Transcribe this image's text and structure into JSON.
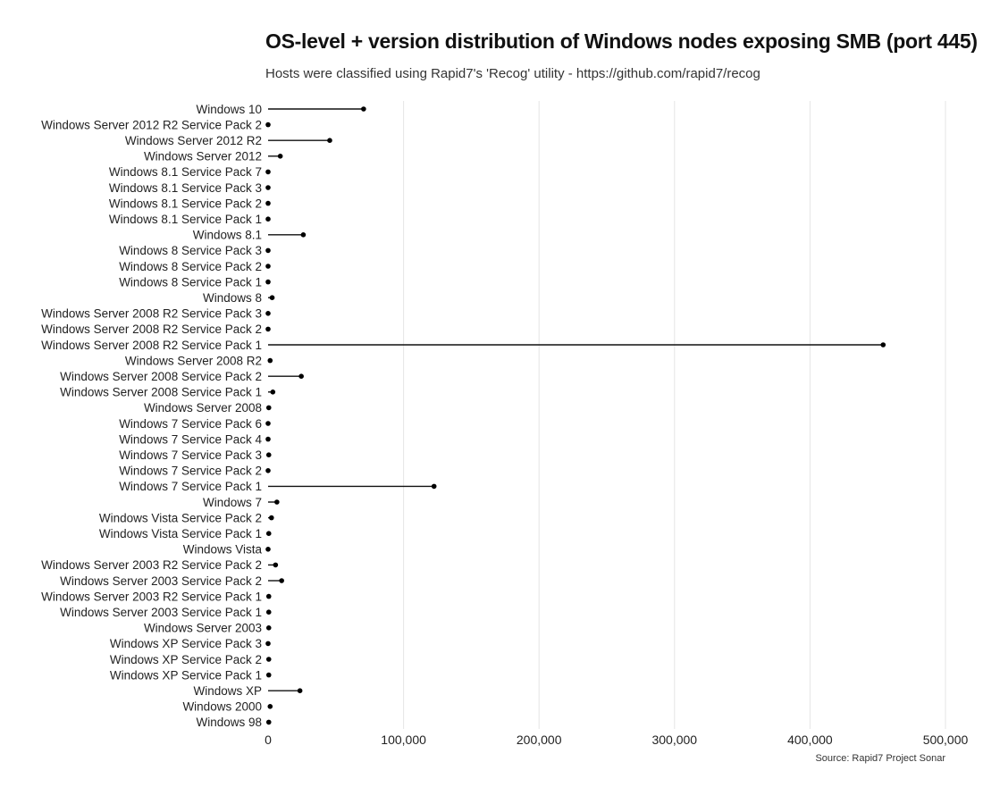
{
  "chart_data": {
    "type": "lollipop",
    "orientation": "horizontal",
    "title": "OS-level + version distribution of Windows nodes exposing SMB (port 445)",
    "subtitle": "Hosts were classified using Rapid7's 'Recog' utility - https://github.com/rapid7/recog",
    "caption": "Source: Rapid7 Project Sonar",
    "xlabel": "",
    "ylabel": "",
    "xlim": [
      0,
      500000
    ],
    "x_ticks": [
      0,
      100000,
      200000,
      300000,
      400000,
      500000
    ],
    "x_tick_labels": [
      "0",
      "100,000",
      "200,000",
      "300,000",
      "400,000",
      "500,000"
    ],
    "grid": "vertical",
    "categories": [
      "Windows 10",
      "Windows Server 2012 R2 Service Pack 2",
      "Windows Server 2012 R2",
      "Windows Server 2012",
      "Windows 8.1 Service Pack 7",
      "Windows 8.1 Service Pack 3",
      "Windows 8.1 Service Pack 2",
      "Windows 8.1 Service Pack 1",
      "Windows 8.1",
      "Windows 8 Service Pack 3",
      "Windows 8 Service Pack 2",
      "Windows 8 Service Pack 1",
      "Windows 8",
      "Windows Server 2008 R2 Service Pack 3",
      "Windows Server 2008 R2 Service Pack 2",
      "Windows Server 2008 R2 Service Pack 1",
      "Windows Server 2008 R2",
      "Windows Server 2008 Service Pack 2",
      "Windows Server 2008 Service Pack 1",
      "Windows Server 2008",
      "Windows 7 Service Pack 6",
      "Windows 7 Service Pack 4",
      "Windows 7 Service Pack 3",
      "Windows 7 Service Pack 2",
      "Windows 7 Service Pack 1",
      "Windows 7",
      "Windows Vista Service Pack 2",
      "Windows Vista Service Pack 1",
      "Windows Vista",
      "Windows Server 2003 R2 Service Pack 2",
      "Windows Server 2003 Service Pack 2",
      "Windows Server 2003 R2 Service Pack 1",
      "Windows Server 2003 Service Pack 1",
      "Windows Server 2003",
      "Windows XP Service Pack 3",
      "Windows XP Service Pack 2",
      "Windows XP Service Pack 1",
      "Windows XP",
      "Windows 2000",
      "Windows 98"
    ],
    "values": [
      70500,
      0,
      45500,
      9000,
      0,
      0,
      0,
      0,
      26000,
      0,
      0,
      0,
      3000,
      0,
      0,
      454000,
      1500,
      24500,
      3500,
      500,
      0,
      0,
      500,
      0,
      122500,
      6500,
      2500,
      500,
      0,
      5500,
      10000,
      500,
      500,
      500,
      0,
      500,
      500,
      23500,
      1500,
      500
    ],
    "colors": {
      "line": "#111111",
      "point": "#000000",
      "grid": "#e5e5e5"
    }
  }
}
